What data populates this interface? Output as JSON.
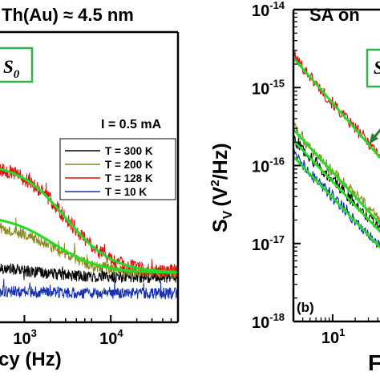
{
  "colors": {
    "black": "#000000",
    "olive": "#8a8a1e",
    "red": "#dd1111",
    "blue": "#1530b0",
    "fit_green": "#22dd22",
    "label_box": "#2fb34a",
    "arrow_green": "#2e7d32"
  },
  "chart_data": [
    {
      "panel": "a",
      "type": "line",
      "title": "Th(Au) ≈ 4.5 nm",
      "xlabel": "cy (Hz)",
      "x_scale": "log",
      "x_ticks": [
        {
          "value": 1000,
          "base": "10",
          "exp": "3"
        },
        {
          "value": 10000,
          "base": "10",
          "exp": "4"
        }
      ],
      "xlim": [
        500,
        60000
      ],
      "ylim_relative": [
        0,
        1
      ],
      "box_label": {
        "sym": "S",
        "sub": "0"
      },
      "legend": {
        "header": "I = 0.5 mA",
        "placement": "right",
        "entries": [
          {
            "label": "T = 300 K",
            "color": "#000000"
          },
          {
            "label": "T = 200 K",
            "color": "#8a8a1e"
          },
          {
            "label": "T = 128 K",
            "color": "#dd1111"
          },
          {
            "label": "T = 10 K",
            "color": "#1530b0"
          }
        ]
      },
      "series": [
        {
          "name": "T = 300 K",
          "color": "#000000",
          "baseline": 0.155,
          "amplitude": 0.04,
          "corner_hz": 1200,
          "noise": 0.02
        },
        {
          "name": "T = 200 K",
          "color": "#8a8a1e",
          "baseline": 0.17,
          "amplitude": 0.17,
          "corner_hz": 2200,
          "noise": 0.02
        },
        {
          "name": "T = 128 K",
          "color": "#dd1111",
          "baseline": 0.17,
          "amplitude": 0.38,
          "corner_hz": 3000,
          "noise": 0.025
        },
        {
          "name": "T = 10 K",
          "color": "#1530b0",
          "baseline": 0.1,
          "amplitude": 0.01,
          "corner_hz": 1000,
          "noise": 0.02
        }
      ],
      "fits": [
        {
          "baseline": 0.17,
          "amplitude": 0.2,
          "corner_hz": 2200
        },
        {
          "baseline": 0.17,
          "amplitude": 0.38,
          "corner_hz": 3000
        }
      ]
    },
    {
      "panel": "b",
      "type": "line",
      "title": "SA on",
      "ylabel_main": "S",
      "ylabel_sub": "V",
      "ylabel_open": "(V",
      "ylabel_sup": "2",
      "ylabel_close": "/Hz)",
      "xlabel": "F",
      "x_scale": "log",
      "y_scale": "log",
      "xlim": [
        3,
        45
      ],
      "ylim": [
        1e-18,
        1e-14
      ],
      "x_ticks": [
        {
          "value": 10,
          "base": "10",
          "exp": "1"
        }
      ],
      "y_ticks": [
        {
          "value": 1e-18,
          "base": "10",
          "exp": "-18"
        },
        {
          "value": 1e-17,
          "base": "10",
          "exp": "-17"
        },
        {
          "value": 1e-16,
          "base": "10",
          "exp": "-16"
        },
        {
          "value": 1e-15,
          "base": "10",
          "exp": "-15"
        },
        {
          "value": 1e-14,
          "base": "10",
          "exp": "-14"
        }
      ],
      "panel_label": "(b)",
      "box_label": {
        "sym": "S",
        "sub": ""
      },
      "series": [
        {
          "color": "#dd1111",
          "points": [
            [
              3,
              2.6e-15
            ],
            [
              5,
              1.4e-15
            ],
            [
              8,
              8e-16
            ],
            [
              10,
              6.3e-16
            ],
            [
              15,
              4e-16
            ],
            [
              20,
              3e-16
            ],
            [
              30,
              2e-16
            ],
            [
              45,
              1.3e-16
            ]
          ]
        },
        {
          "color": "#8a8a1e",
          "points": [
            [
              3,
              3.2e-16
            ],
            [
              5,
              1.7e-16
            ],
            [
              8,
              1.05e-16
            ],
            [
              10,
              8.5e-17
            ],
            [
              15,
              5.5e-17
            ],
            [
              20,
              4.2e-17
            ],
            [
              30,
              2.8e-17
            ],
            [
              45,
              1.9e-17
            ]
          ]
        },
        {
          "color": "#000000",
          "points": [
            [
              3,
              2.2e-16
            ],
            [
              5,
              1.3e-16
            ],
            [
              8,
              8e-17
            ],
            [
              10,
              6.5e-17
            ],
            [
              15,
              4.3e-17
            ],
            [
              20,
              3.3e-17
            ],
            [
              30,
              2.2e-17
            ],
            [
              45,
              1.5e-17
            ]
          ]
        },
        {
          "color": "#1530b0",
          "points": [
            [
              3,
              1.4e-16
            ],
            [
              5,
              8e-17
            ],
            [
              8,
              5e-17
            ],
            [
              10,
              4e-17
            ],
            [
              15,
              2.7e-17
            ],
            [
              20,
              2e-17
            ],
            [
              30,
              1.35e-17
            ],
            [
              45,
              9e-18
            ]
          ]
        }
      ],
      "fits": [
        {
          "x": [
            3,
            45
          ],
          "y": [
            2.4e-15,
            1.2e-16
          ]
        },
        {
          "x": [
            3,
            45
          ],
          "y": [
            2.9e-16,
            1.7e-17
          ]
        },
        {
          "x": [
            3,
            45
          ],
          "y": [
            2.1e-16,
            1.35e-17
          ]
        },
        {
          "x": [
            3,
            45
          ],
          "y": [
            1.3e-16,
            8.5e-18
          ]
        }
      ]
    }
  ]
}
